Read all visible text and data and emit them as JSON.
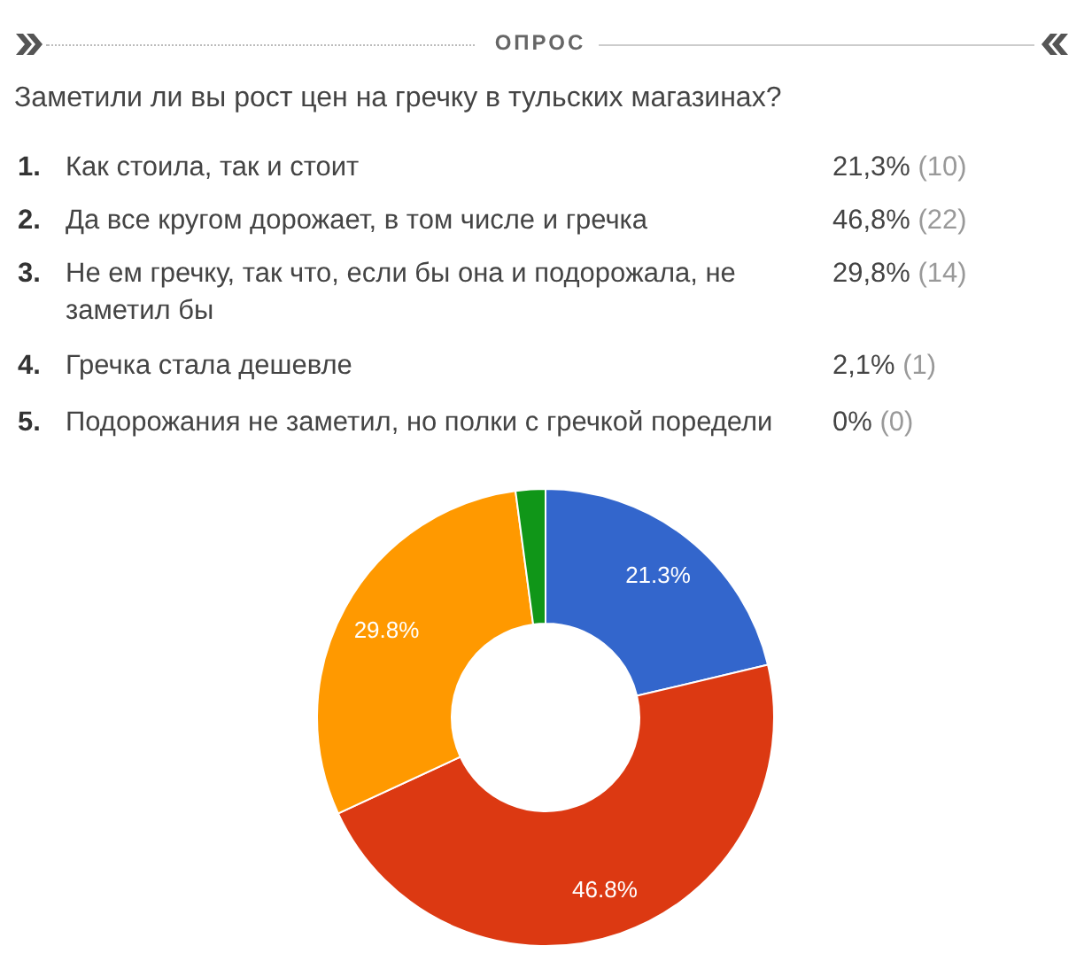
{
  "chart_data": {
    "type": "donut",
    "title": "ОПРОС",
    "subtitle": "Заметили ли вы рост цен на гречку в тульских магазинах?",
    "categories": [
      null,
      null,
      null,
      null,
      null
    ],
    "values": [
      21.3,
      46.8,
      29.8,
      2.1,
      0
    ],
    "colors": [
      "#3366cc",
      "#dc3912",
      "#ff9900",
      "#109618",
      "#990099"
    ],
    "value_labels": [
      "21.3%",
      "46.8%",
      "29.8%",
      null,
      null
    ],
    "annotations": [
      "1. Как стоила, так и стоит",
      "21,3% (10)",
      "2. Да все кругом дорожает, в том числе и гречка",
      "46,8% (22)",
      "3. Не ем гречку, так что, если бы она и подорожала, не заметил бы",
      "29,8% (14)",
      "4. Гречка стала дешевле",
      "2,1% (1)",
      "5. Подорожания не заметил, но полки с гречкой поредели",
      "0% (0)"
    ]
  }
}
